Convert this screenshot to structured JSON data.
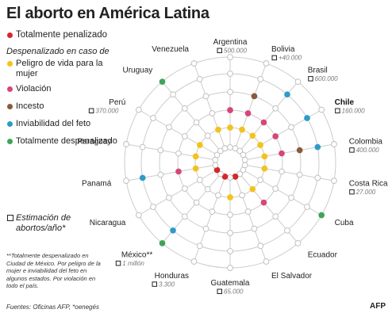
{
  "title": "El aborto en América Latina",
  "legend": {
    "total_penalizado": "Totalmente penalizado",
    "heading": "Despenalizado en caso de",
    "peligro": "Peligro de vida para la mujer",
    "violacion": "Violación",
    "incesto": "Incesto",
    "inviabilidad": "Inviabilidad del feto",
    "total_despenalizado": "Totalmente despenalizado",
    "estimacion": "Estimación de abortos/año*"
  },
  "colors": {
    "penalizado": "#d7262b",
    "peligro": "#f2c31b",
    "violacion": "#d6467a",
    "incesto": "#8b5a3c",
    "inviabilidad": "#2e9bc9",
    "despenalizado": "#3fa45a",
    "ring": "#cccccc"
  },
  "note": "**Totalmente despenalizado en Ciudad de México. Por peligro de la mujer e inviabilidad del feto en algunos estados. Por violación en todo el país.",
  "sources": "Fuentes: Oficinas AFP, *oenegés",
  "logo": "AFP",
  "chart_data": {
    "type": "radial-dot-matrix",
    "rings_inner_to_outer": [
      "Totalmente penalizado",
      "Peligro de vida para la mujer",
      "Violación",
      "Incesto",
      "Inviabilidad del feto",
      "Totalmente despenalizado"
    ],
    "countries": [
      {
        "name": "Argentina",
        "estimate": "500.000",
        "status": "peligro_violacion",
        "bold": false
      },
      {
        "name": "Bolivia",
        "estimate": "+40.000",
        "status": "peligro_violacion_incesto",
        "bold": false
      },
      {
        "name": "Brasil",
        "estimate": "600.000",
        "status": "peligro_violacion_inviabilidad",
        "bold": false
      },
      {
        "name": "Chile",
        "estimate": "160.000",
        "status": "peligro_violacion_inviabilidad",
        "bold": true
      },
      {
        "name": "Colombia",
        "estimate": "400.000",
        "status": "peligro_violacion_incesto_inviabilidad",
        "bold": false
      },
      {
        "name": "Costa Rica",
        "estimate": "27.000",
        "status": "peligro",
        "bold": false
      },
      {
        "name": "Cuba",
        "estimate": "",
        "status": "despenalizado",
        "bold": false
      },
      {
        "name": "Ecuador",
        "estimate": "",
        "status": "peligro_violacion",
        "bold": false
      },
      {
        "name": "El Salvador",
        "estimate": "",
        "status": "penalizado",
        "bold": false
      },
      {
        "name": "Guatemala",
        "estimate": "65.000",
        "status": "peligro",
        "bold": false
      },
      {
        "name": "Honduras",
        "estimate": "3.300",
        "status": "penalizado",
        "bold": false
      },
      {
        "name": "México**",
        "estimate": "1 millón",
        "status": "despenalizado_inviabilidad",
        "bold": false
      },
      {
        "name": "Nicaragua",
        "estimate": "",
        "status": "penalizado",
        "bold": false
      },
      {
        "name": "Panamá",
        "estimate": "",
        "status": "peligro_violacion_inviabilidad",
        "bold": false
      },
      {
        "name": "Paraguay",
        "estimate": "",
        "status": "peligro",
        "bold": false
      },
      {
        "name": "Perú",
        "estimate": "370.000",
        "status": "peligro",
        "bold": false
      },
      {
        "name": "Uruguay",
        "estimate": "",
        "status": "despenalizado",
        "bold": false
      },
      {
        "name": "Venezuela",
        "estimate": "",
        "status": "peligro",
        "bold": false
      }
    ]
  }
}
